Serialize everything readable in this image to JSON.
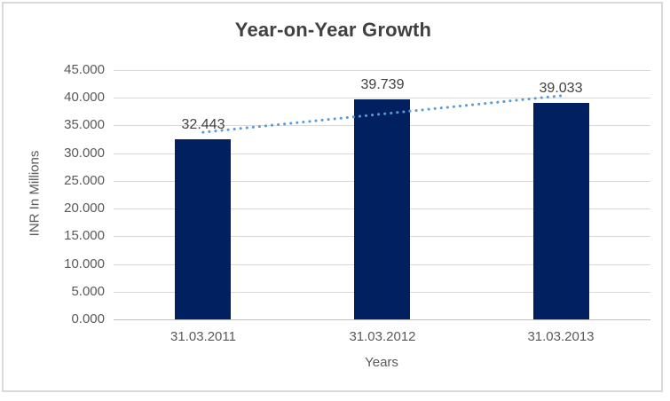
{
  "chart_data": {
    "type": "bar",
    "title": "Year-on-Year Growth",
    "xlabel": "Years",
    "ylabel": "INR In Millions",
    "categories": [
      "31.03.2011",
      "31.03.2012",
      "31.03.2013"
    ],
    "values": [
      32.443,
      39.739,
      39.033
    ],
    "data_labels": [
      "32.443",
      "39.739",
      "39.033"
    ],
    "ylim": [
      0,
      45
    ],
    "ytick_step": 5,
    "ytick_labels": [
      "45.000",
      "40.000",
      "35.000",
      "30.000",
      "25.000",
      "20.000",
      "15.000",
      "10.000",
      "5.000",
      "0.000"
    ],
    "grid": "horizontal",
    "legend": "none",
    "trendline": {
      "style": "dotted",
      "start_value": 33.78,
      "end_value": 40.37,
      "color": "#5B9BD5"
    },
    "colors": {
      "bar": "#002060",
      "trendline": "#5B9BD5",
      "gridline": "#D9D9D9",
      "axis_line": "#BFBFBF",
      "title_text": "#404040",
      "tick_text": "#595959",
      "data_label_text": "#404040",
      "frame_border": "#D9D9D9",
      "background": "#FFFFFF"
    }
  }
}
